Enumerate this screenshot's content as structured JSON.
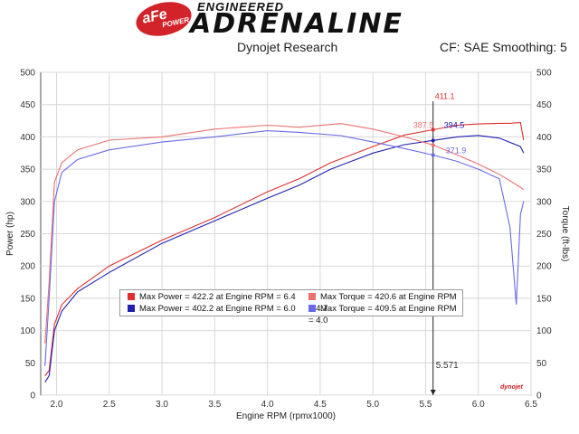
{
  "header": {
    "brand_logo": "aFe POWER",
    "brand_line1": "ENGINEERED",
    "brand_line2": "ADRENALINE",
    "subtitle": "Dynojet Research",
    "correction": "CF: SAE Smoothing: 5"
  },
  "chart_data": {
    "type": "line",
    "xlabel": "Engine RPM (rpmx1000)",
    "ylabel_left": "Power (hp)",
    "ylabel_right": "Torque (ft-lbs)",
    "xlim": [
      1.85,
      6.5
    ],
    "ylim": [
      0,
      500
    ],
    "x_ticks": [
      "2.0",
      "2.5",
      "3.0",
      "3.5",
      "4.0",
      "4.5",
      "5.0",
      "5.5",
      "6.0",
      "6.5"
    ],
    "y_ticks": [
      "0",
      "50",
      "100",
      "150",
      "200",
      "250",
      "300",
      "350",
      "400",
      "450",
      "500"
    ],
    "y_ticks_right": [
      "0",
      "50",
      "100",
      "150",
      "200",
      "250",
      "300",
      "350",
      "400",
      "450",
      "500"
    ],
    "grid": true,
    "cursor": {
      "x": 5.571,
      "label": "5.571"
    },
    "annotations": [
      {
        "text": "411.1",
        "x": 5.571,
        "y": 411.1,
        "color": "#e03030"
      },
      {
        "text": "387.5",
        "x": 5.571,
        "y": 387.5,
        "color": "#ee7070"
      },
      {
        "text": "394.5",
        "x": 5.571,
        "y": 394.5,
        "color": "#2020b0"
      },
      {
        "text": "371.9",
        "x": 5.571,
        "y": 371.9,
        "color": "#6a6ae8"
      }
    ],
    "series": [
      {
        "name": "Max Power = 422.2 at Engine RPM = 6.4",
        "color": "#e03030",
        "x": [
          1.89,
          1.93,
          1.98,
          2.05,
          2.2,
          2.5,
          3.0,
          3.5,
          4.0,
          4.3,
          4.6,
          5.0,
          5.3,
          5.571,
          5.8,
          6.0,
          6.2,
          6.3,
          6.4,
          6.43
        ],
        "y": [
          30,
          38,
          110,
          140,
          165,
          200,
          240,
          275,
          315,
          335,
          360,
          385,
          403,
          411.1,
          418,
          420,
          421,
          421,
          422.2,
          395
        ]
      },
      {
        "name": "Max Power = 402.2 at Engine RPM = 6.0",
        "color": "#2020b0",
        "x": [
          1.89,
          1.93,
          1.98,
          2.05,
          2.2,
          2.5,
          3.0,
          3.5,
          4.0,
          4.3,
          4.6,
          5.0,
          5.3,
          5.571,
          5.8,
          6.0,
          6.2,
          6.4,
          6.43
        ],
        "y": [
          20,
          30,
          100,
          130,
          160,
          190,
          235,
          270,
          305,
          325,
          350,
          375,
          388,
          394.5,
          400,
          402.2,
          398,
          385,
          375
        ]
      },
      {
        "name": "Max Torque = 420.6 at Engine RPM = 4.7",
        "color": "#ee7070",
        "x": [
          1.89,
          1.93,
          1.98,
          2.05,
          2.2,
          2.5,
          3.0,
          3.5,
          4.0,
          4.3,
          4.7,
          5.0,
          5.3,
          5.571,
          5.8,
          6.0,
          6.2,
          6.4,
          6.43
        ],
        "y": [
          80,
          175,
          330,
          360,
          380,
          395,
          400,
          412,
          418,
          415,
          420.6,
          412,
          400,
          387.5,
          372,
          358,
          342,
          322,
          318
        ]
      },
      {
        "name": "Max Torque = 409.5 at Engine RPM = 4.0",
        "color": "#6a6ae8",
        "x": [
          1.89,
          1.93,
          1.98,
          2.05,
          2.2,
          2.5,
          3.0,
          3.5,
          4.0,
          4.3,
          4.7,
          5.0,
          5.3,
          5.571,
          5.8,
          6.0,
          6.2,
          6.3,
          6.36,
          6.4,
          6.43
        ],
        "y": [
          45,
          150,
          300,
          345,
          365,
          380,
          392,
          400,
          409.5,
          407,
          402,
          392,
          382,
          371.9,
          362,
          350,
          335,
          260,
          140,
          280,
          300
        ]
      }
    ]
  },
  "footer_logo": "dynojet"
}
